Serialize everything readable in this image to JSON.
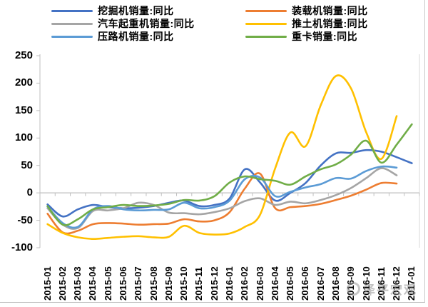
{
  "chart_data": {
    "type": "line",
    "title": "",
    "smoothed": true,
    "grid": "zero-line-only",
    "legend_position": "top",
    "ylim": [
      -100,
      250
    ],
    "y_ticks": [
      "250",
      "200",
      "150",
      "100",
      "50",
      "0",
      "-50",
      "-100"
    ],
    "y_tick_values": [
      250,
      200,
      150,
      100,
      50,
      0,
      -50,
      -100
    ],
    "x": [
      "2015-01",
      "2015-02",
      "2015-03",
      "2015-04",
      "2015-05",
      "2015-06",
      "2015-07",
      "2015-08",
      "2015-09",
      "2015-10",
      "2015-11",
      "2015-12",
      "2016-01",
      "2016-02",
      "2016-03",
      "2016-04",
      "2016-05",
      "2016-06",
      "2016-07",
      "2016-08",
      "2016-09",
      "2016-10",
      "2016-11",
      "2016-12",
      "2017-01"
    ],
    "series": [
      {
        "name": "挖掘机销量:同比",
        "color": "#4472C4",
        "values": [
          -21,
          -43,
          -30,
          -22,
          -26,
          -28,
          -27,
          -24,
          -18,
          -14,
          -24,
          -22,
          -10,
          43,
          19,
          -14,
          0,
          18,
          50,
          72,
          73,
          78,
          75,
          65,
          54
        ]
      },
      {
        "name": "装载机销量:同比",
        "color": "#ED7D31",
        "values": [
          -38,
          -72,
          -69,
          -57,
          -55,
          -56,
          -58,
          -57,
          -56,
          -48,
          -52,
          -50,
          -35,
          8,
          35,
          -28,
          -26,
          -24,
          -20,
          -13,
          -5,
          6,
          18,
          17,
          null
        ]
      },
      {
        "name": "汽车起重机销量:同比",
        "color": "#A5A5A5",
        "values": [
          -28,
          -58,
          -64,
          -33,
          -32,
          -28,
          -18,
          -22,
          -36,
          -37,
          -39,
          -35,
          -28,
          -15,
          -10,
          -22,
          -16,
          -19,
          -13,
          -4,
          9,
          27,
          45,
          32,
          null
        ]
      },
      {
        "name": "推土机销量:同比",
        "color": "#FFC000",
        "values": [
          -57,
          -73,
          -81,
          -84,
          -82,
          -80,
          -79,
          -81,
          -80,
          -60,
          -73,
          -76,
          -74,
          -62,
          -40,
          45,
          110,
          85,
          160,
          213,
          190,
          110,
          62,
          140,
          null
        ]
      },
      {
        "name": "压路机销量:同比",
        "color": "#5B9BD5",
        "values": [
          -25,
          -55,
          -62,
          -30,
          -24,
          -30,
          -32,
          -31,
          -30,
          -18,
          -28,
          -26,
          -14,
          25,
          28,
          -6,
          2,
          10,
          16,
          27,
          26,
          40,
          48,
          46,
          null
        ]
      },
      {
        "name": "重卡销量:同比",
        "color": "#70AD47",
        "values": [
          -24,
          -58,
          -48,
          -30,
          -26,
          -22,
          -24,
          -23,
          -20,
          -13,
          -14,
          -6,
          19,
          30,
          25,
          22,
          15,
          30,
          43,
          52,
          70,
          95,
          55,
          88,
          125
        ]
      }
    ],
    "axis_color": "#BFBFBF",
    "watermark": "泽平宏观"
  }
}
